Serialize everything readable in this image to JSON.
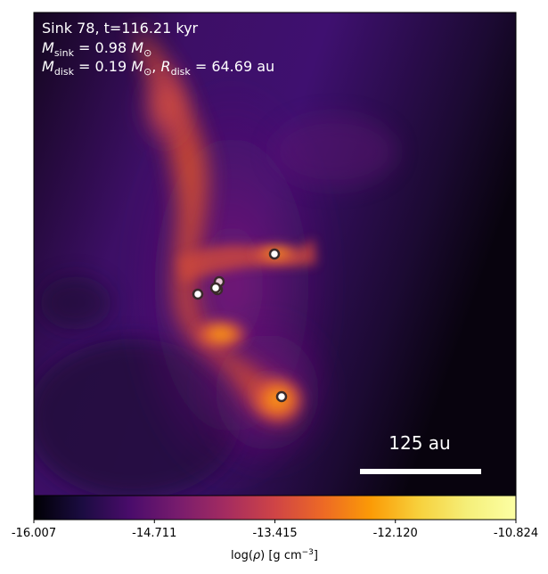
{
  "chart_data": {
    "type": "heatmap",
    "title_lines": {
      "line1": "Sink 78, t=116.21 kyr",
      "line2_label": "M",
      "line2_sub": "sink",
      "line2_eq": " = 0.98",
      "line2_unit_label": "M",
      "line2_unit_sub": "⊙",
      "line3_label": "M",
      "line3_sub": "disk",
      "line3_eq": " = 0.19",
      "line3_unit_label": "M",
      "line3_unit_sub": "⊙",
      "line3_sep": ",",
      "line3_r_label": "R",
      "line3_r_sub": "disk",
      "line3_r_eq": " = 64.69",
      "line3_r_unit": "au"
    },
    "scale_bar_label": "125 au",
    "colorbar": {
      "colormap": "inferno",
      "ticks": [
        "-16.007",
        "-14.711",
        "-13.415",
        "-12.120",
        "-10.824"
      ],
      "tick_values": [
        -16.007,
        -14.711,
        -13.415,
        -12.12,
        -10.824
      ],
      "range": [
        -16.007,
        -10.824
      ],
      "label_prefix": "log(",
      "label_rho": "ρ",
      "label_mid": ") [g cm",
      "label_exp": "−3",
      "label_suffix": "]"
    },
    "sinks": [
      {
        "id": "sink-upper-right",
        "fill": "#ffffff"
      },
      {
        "id": "sink-left",
        "fill": "#ffffff"
      },
      {
        "id": "sink-center-a",
        "fill": "#e8c8d8"
      },
      {
        "id": "sink-center-b",
        "fill": "#ffffff"
      },
      {
        "id": "sink-center-c",
        "fill": "#ffffff"
      },
      {
        "id": "sink-lower",
        "fill": "#ffffff"
      }
    ],
    "colors": {
      "background": "#3a0e62",
      "filament": "#e8602c",
      "text": "#ffffff",
      "sink_edge": "#3a2a2a"
    }
  }
}
